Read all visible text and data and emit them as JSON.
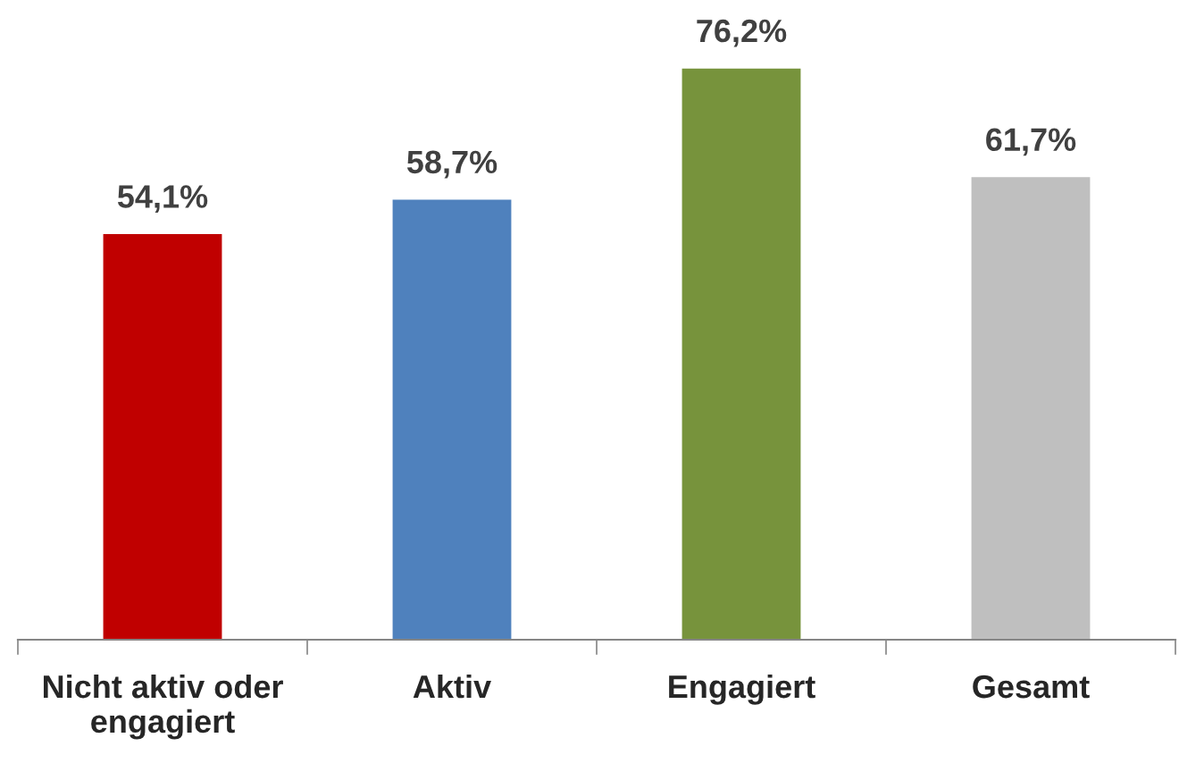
{
  "chart_data": {
    "type": "bar",
    "categories": [
      "Nicht aktiv oder\nengagiert",
      "Aktiv",
      "Engagiert",
      "Gesamt"
    ],
    "values": [
      54.1,
      58.7,
      76.2,
      61.7
    ],
    "colors": [
      "#c00000",
      "#4f81bd",
      "#77933c",
      "#bfbfbf"
    ],
    "value_labels": [
      "54,1%",
      "58,7%",
      "76,2%",
      "61,7%"
    ],
    "grid": false,
    "legend": false
  }
}
